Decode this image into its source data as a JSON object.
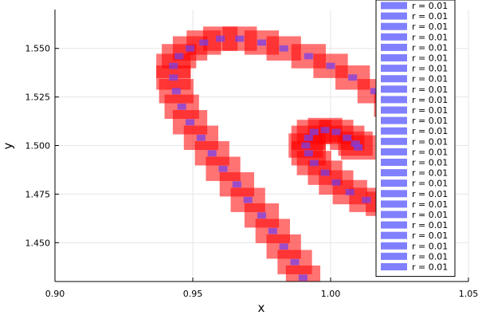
{
  "chart_data": {
    "type": "scatter",
    "title": "",
    "xlabel": "x",
    "ylabel": "y",
    "xlim": [
      0.9,
      1.05
    ],
    "ylim": [
      1.43,
      1.57
    ],
    "x_ticks": [
      0.9,
      0.95,
      1.0,
      1.05
    ],
    "x_tick_labels": [
      "0.90",
      "0.95",
      "1.00",
      "1.05"
    ],
    "y_ticks": [
      1.45,
      1.475,
      1.5,
      1.525,
      1.55
    ],
    "y_tick_labels": [
      "1.450",
      "1.475",
      "1.500",
      "1.525",
      "1.550"
    ],
    "grid": true,
    "legend_position": "top-right",
    "legend_entries": [
      "r = 0.01",
      "r = 0.01",
      "r = 0.01",
      "r = 0.01",
      "r = 0.01",
      "r = 0.01",
      "r = 0.01",
      "r = 0.01",
      "r = 0.01",
      "r = 0.01",
      "r = 0.01",
      "r = 0.01",
      "r = 0.01",
      "r = 0.01",
      "r = 0.01",
      "r = 0.01",
      "r = 0.01",
      "r = 0.01",
      "r = 0.01",
      "r = 0.01",
      "r = 0.01",
      "r = 0.01",
      "r = 0.01",
      "r = 0.01",
      "r = 0.01",
      "r = 0.01"
    ],
    "series": [
      {
        "name": "r = 0.01",
        "color": "#ff0000",
        "opacity": 0.55,
        "marker": "square",
        "marker_data_size": 0.0125,
        "x": [
          0.99,
          0.987,
          0.983,
          0.979,
          0.975,
          0.97,
          0.966,
          0.961,
          0.957,
          0.953,
          0.949,
          0.946,
          0.944,
          0.943,
          0.943,
          0.945,
          0.949,
          0.954,
          0.96,
          0.967,
          0.975,
          0.983,
          0.992,
          1.0,
          1.008,
          1.016,
          1.022,
          1.028,
          1.032,
          1.035,
          1.036,
          1.035,
          1.033,
          1.029,
          1.024,
          1.019,
          1.013,
          1.007,
          1.002,
          0.998,
          0.994,
          0.992,
          0.991,
          0.992,
          0.994,
          0.998,
          1.002,
          1.006,
          1.009,
          1.01
        ],
        "y": [
          1.432,
          1.44,
          1.448,
          1.456,
          1.464,
          1.472,
          1.48,
          1.488,
          1.496,
          1.504,
          1.512,
          1.52,
          1.528,
          1.535,
          1.541,
          1.546,
          1.55,
          1.553,
          1.555,
          1.555,
          1.553,
          1.55,
          1.546,
          1.541,
          1.535,
          1.528,
          1.521,
          1.513,
          1.505,
          1.497,
          1.489,
          1.482,
          1.476,
          1.472,
          1.47,
          1.47,
          1.472,
          1.476,
          1.481,
          1.486,
          1.491,
          1.496,
          1.5,
          1.504,
          1.507,
          1.508,
          1.507,
          1.504,
          1.501,
          1.499
        ]
      },
      {
        "name": "r = 0.01",
        "color": "#7b3fe4",
        "opacity": 0.75,
        "marker": "square",
        "marker_data_size": 0.0032,
        "x": [
          0.99,
          0.987,
          0.983,
          0.979,
          0.975,
          0.97,
          0.966,
          0.961,
          0.957,
          0.953,
          0.949,
          0.946,
          0.944,
          0.943,
          0.943,
          0.945,
          0.949,
          0.954,
          0.96,
          0.967,
          0.975,
          0.983,
          0.992,
          1.0,
          1.008,
          1.016,
          1.022,
          1.028,
          1.032,
          1.035,
          1.036,
          1.035,
          1.033,
          1.029,
          1.024,
          1.019,
          1.013,
          1.007,
          1.002,
          0.998,
          0.994,
          0.992,
          0.991,
          0.992,
          0.994,
          0.998,
          1.002,
          1.006,
          1.009,
          1.01
        ],
        "y": [
          1.432,
          1.44,
          1.448,
          1.456,
          1.464,
          1.472,
          1.48,
          1.488,
          1.496,
          1.504,
          1.512,
          1.52,
          1.528,
          1.535,
          1.541,
          1.546,
          1.55,
          1.553,
          1.555,
          1.555,
          1.553,
          1.55,
          1.546,
          1.541,
          1.535,
          1.528,
          1.521,
          1.513,
          1.505,
          1.497,
          1.489,
          1.482,
          1.476,
          1.472,
          1.47,
          1.47,
          1.472,
          1.476,
          1.481,
          1.486,
          1.491,
          1.496,
          1.5,
          1.504,
          1.507,
          1.508,
          1.507,
          1.504,
          1.501,
          1.499
        ]
      }
    ],
    "legend_swatch_color": "#8080ff"
  }
}
